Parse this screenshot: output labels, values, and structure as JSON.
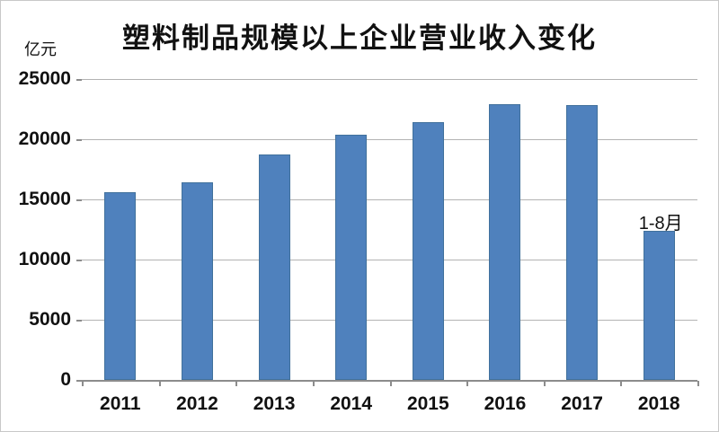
{
  "page": {
    "background": "#ffffff",
    "border_color": "#c8c8c8"
  },
  "chart_data": {
    "type": "bar",
    "title": "塑料制品规模以上企业营业收入变化",
    "unit_label": "亿元",
    "categories": [
      "2011",
      "2012",
      "2013",
      "2014",
      "2015",
      "2016",
      "2017",
      "2018"
    ],
    "values": [
      15600,
      16400,
      18700,
      20400,
      21400,
      22900,
      22800,
      12400
    ],
    "series_name": "营业收入",
    "annotation": {
      "text": "1-8月",
      "category": "2018"
    },
    "xlabel": "",
    "ylabel": "亿元",
    "ylim": [
      0,
      25000
    ],
    "yticks": [
      0,
      5000,
      10000,
      15000,
      20000,
      25000
    ],
    "grid": true,
    "legend": "none",
    "colors": {
      "bar_fill": "#4f81bd",
      "bar_border": "#41719c",
      "gridline": "#b3b3b3",
      "axis": "#8c8c8c",
      "text": "#111111",
      "background": "#ffffff"
    }
  }
}
